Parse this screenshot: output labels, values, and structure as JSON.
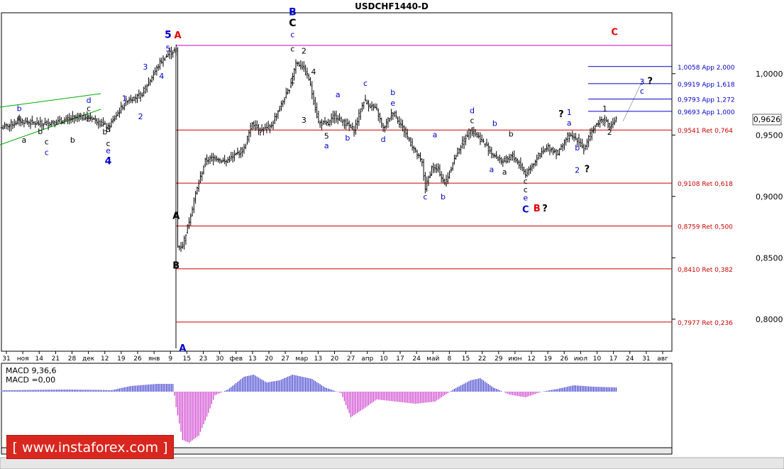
{
  "window": {
    "title": "USDCHF1440-D"
  },
  "price_axis": {
    "current_price": "0,9626",
    "ticks": [
      {
        "label": "1,0000",
        "value": 1.0
      },
      {
        "label": "0,9500",
        "value": 0.95
      },
      {
        "label": "0,9000",
        "value": 0.9
      },
      {
        "label": "0,8500",
        "value": 0.85
      },
      {
        "label": "0,8000",
        "value": 0.8
      }
    ]
  },
  "time_axis": {
    "ticks": [
      "31",
      "ноя",
      "14",
      "21",
      "28",
      "дек",
      "12",
      "19",
      "26",
      "янв",
      "9",
      "15",
      "23",
      "30",
      "фев",
      "13",
      "20",
      "27",
      "мар",
      "13",
      "20",
      "27",
      "апр",
      "10",
      "17",
      "24",
      "май",
      "8",
      "15",
      "22",
      "29",
      "июн",
      "12",
      "19",
      "26",
      "июл",
      "10",
      "17",
      "24",
      "31",
      "авг"
    ]
  },
  "levels": [
    {
      "label": "1,0058 App 2,000",
      "value": 1.0058,
      "color": "#0000cc"
    },
    {
      "label": "0,9919 App 1,618",
      "value": 0.9919,
      "color": "#0000cc"
    },
    {
      "label": "0,9793 App 1,272",
      "value": 0.9793,
      "color": "#0000cc"
    },
    {
      "label": "0,9693 App 1,000",
      "value": 0.9693,
      "color": "#0000cc"
    },
    {
      "label": "0,9541 Ret 0,764",
      "value": 0.9541,
      "color": "#cc0000"
    },
    {
      "label": "0,9108 Ret 0,618",
      "value": 0.9108,
      "color": "#cc0000"
    },
    {
      "label": "0,8759 Ret 0,500",
      "value": 0.8759,
      "color": "#cc0000"
    },
    {
      "label": "0,8410 Ret 0,382",
      "value": 0.841,
      "color": "#cc0000"
    },
    {
      "label": "0,7977 Ret 0,236",
      "value": 0.7977,
      "color": "#cc0000"
    }
  ],
  "wave_labels": [
    {
      "text": "5",
      "i": 103,
      "p": 1.029,
      "color": "#0000cc",
      "bold": true,
      "size": 14
    },
    {
      "text": "A",
      "i": 109,
      "p": 1.0288,
      "color": "#e00000",
      "bold": true,
      "size": 13
    },
    {
      "text": "5",
      "i": 103,
      "p": 1.018,
      "color": "#0000cc",
      "size": 11
    },
    {
      "text": "3",
      "i": 89,
      "p": 1.0035,
      "color": "#0000cc",
      "size": 11
    },
    {
      "text": "4",
      "i": 99,
      "p": 0.9958,
      "color": "#0000cc",
      "size": 11
    },
    {
      "text": "1",
      "i": 76,
      "p": 0.9775,
      "color": "#0000cc",
      "size": 11
    },
    {
      "text": "2",
      "i": 86,
      "p": 0.9628,
      "color": "#0000cc",
      "size": 11
    },
    {
      "text": "d",
      "i": 54,
      "p": 0.9763,
      "color": "#0000cc",
      "size": 11
    },
    {
      "text": "c",
      "i": 54,
      "p": 0.9695,
      "color": "#000",
      "size": 11
    },
    {
      "text": "b",
      "i": 54,
      "p": 0.961,
      "color": "#000",
      "size": 11
    },
    {
      "text": "b",
      "i": 11,
      "p": 0.9695,
      "color": "#0000cc",
      "size": 11
    },
    {
      "text": "e",
      "i": 11,
      "p": 0.962,
      "color": "#000",
      "size": 11
    },
    {
      "text": "a",
      "i": 14,
      "p": 0.9437,
      "color": "#000",
      "size": 11
    },
    {
      "text": "b",
      "i": 24,
      "p": 0.9508,
      "color": "#000",
      "size": 11
    },
    {
      "text": "c",
      "i": 28,
      "p": 0.9425,
      "color": "#000",
      "size": 11
    },
    {
      "text": "c",
      "i": 28,
      "p": 0.9337,
      "color": "#0000cc",
      "size": 11
    },
    {
      "text": "b",
      "i": 44,
      "p": 0.9438,
      "color": "#000",
      "size": 11
    },
    {
      "text": "d",
      "i": 66,
      "p": 0.9526,
      "color": "#000",
      "size": 11
    },
    {
      "text": "b",
      "i": 64,
      "p": 0.9505,
      "color": "#000",
      "size": 11
    },
    {
      "text": "c",
      "i": 66,
      "p": 0.941,
      "color": "#000",
      "size": 11
    },
    {
      "text": "e",
      "i": 66,
      "p": 0.9353,
      "color": "#0000cc",
      "size": 11
    },
    {
      "text": "4",
      "i": 66,
      "p": 0.9263,
      "color": "#0000cc",
      "bold": true,
      "size": 14
    },
    {
      "text": "B",
      "i": 180,
      "p": 1.0475,
      "color": "#0000cc",
      "bold": true,
      "size": 14
    },
    {
      "text": "C",
      "i": 180,
      "p": 1.0385,
      "color": "#000",
      "bold": true,
      "size": 14
    },
    {
      "text": "c",
      "i": 180,
      "p": 1.0297,
      "color": "#0000cc",
      "size": 11
    },
    {
      "text": "c",
      "i": 180,
      "p": 1.0182,
      "color": "#000",
      "size": 11
    },
    {
      "text": "2",
      "i": 187,
      "p": 1.0163,
      "color": "#000",
      "size": 11
    },
    {
      "text": "1",
      "i": 180,
      "p": 0.9922,
      "color": "#000",
      "size": 11
    },
    {
      "text": "4",
      "i": 193,
      "p": 0.9993,
      "color": "#000",
      "size": 11
    },
    {
      "text": "3",
      "i": 187,
      "p": 0.9599,
      "color": "#000",
      "size": 11
    },
    {
      "text": "5",
      "i": 201,
      "p": 0.9469,
      "color": "#000",
      "size": 11
    },
    {
      "text": "a",
      "i": 201,
      "p": 0.9393,
      "color": "#0000cc",
      "size": 11
    },
    {
      "text": "a",
      "i": 208,
      "p": 0.9809,
      "color": "#0000cc",
      "size": 11
    },
    {
      "text": "b",
      "i": 214,
      "p": 0.9456,
      "color": "#0000cc",
      "size": 11
    },
    {
      "text": "c",
      "i": 225,
      "p": 0.9901,
      "color": "#0000cc",
      "size": 11
    },
    {
      "text": "b",
      "i": 242,
      "p": 0.9825,
      "color": "#0000cc",
      "size": 11
    },
    {
      "text": "e",
      "i": 242,
      "p": 0.974,
      "color": "#0000cc",
      "size": 11
    },
    {
      "text": "d",
      "i": 236,
      "p": 0.9445,
      "color": "#0000cc",
      "size": 11
    },
    {
      "text": "a",
      "i": 268,
      "p": 0.9481,
      "color": "#0000cc",
      "size": 11
    },
    {
      "text": "c",
      "i": 262,
      "p": 0.8977,
      "color": "#0000cc",
      "size": 11
    },
    {
      "text": "b",
      "i": 273,
      "p": 0.8977,
      "color": "#0000cc",
      "size": 11
    },
    {
      "text": "d",
      "i": 291,
      "p": 0.9677,
      "color": "#0000cc",
      "size": 11
    },
    {
      "text": "c",
      "i": 291,
      "p": 0.9597,
      "color": "#000",
      "size": 11
    },
    {
      "text": "b",
      "i": 305,
      "p": 0.9575,
      "color": "#0000cc",
      "size": 11
    },
    {
      "text": "a",
      "i": 303,
      "p": 0.9198,
      "color": "#0000cc",
      "size": 11
    },
    {
      "text": "b",
      "i": 315,
      "p": 0.9487,
      "color": "#000",
      "size": 11
    },
    {
      "text": "a",
      "i": 311,
      "p": 0.9177,
      "color": "#000",
      "size": 11
    },
    {
      "text": "c",
      "i": 324,
      "p": 0.9104,
      "color": "#000",
      "size": 11
    },
    {
      "text": "c",
      "i": 324,
      "p": 0.9035,
      "color": "#000",
      "size": 11
    },
    {
      "text": "e",
      "i": 324,
      "p": 0.8966,
      "color": "#0000cc",
      "size": 11
    },
    {
      "text": "C",
      "i": 324,
      "p": 0.8869,
      "color": "#0000cc",
      "bold": true,
      "size": 13
    },
    {
      "text": "B",
      "i": 331,
      "p": 0.8879,
      "color": "#e00000",
      "bold": true,
      "size": 13
    },
    {
      "text": "?",
      "i": 336,
      "p": 0.8879,
      "color": "#000",
      "bold": true,
      "size": 13
    },
    {
      "text": "?",
      "i": 346,
      "p": 0.9647,
      "color": "#000",
      "bold": true,
      "size": 13
    },
    {
      "text": "1",
      "i": 351,
      "p": 0.9664,
      "color": "#0000cc",
      "size": 11
    },
    {
      "text": "a",
      "i": 351,
      "p": 0.9576,
      "color": "#0000cc",
      "size": 11
    },
    {
      "text": "b",
      "i": 356,
      "p": 0.9375,
      "color": "#0000cc",
      "size": 11
    },
    {
      "text": "2",
      "i": 356,
      "p": 0.9194,
      "color": "#0000cc",
      "size": 11
    },
    {
      "text": "?",
      "i": 362,
      "p": 0.9198,
      "color": "#000",
      "bold": true,
      "size": 13
    },
    {
      "text": "1",
      "i": 373,
      "p": 0.9693,
      "color": "#000",
      "size": 11
    },
    {
      "text": "2",
      "i": 376,
      "p": 0.9501,
      "color": "#000",
      "size": 11
    },
    {
      "text": "3",
      "i": 396,
      "p": 0.9911,
      "color": "#0000cc",
      "size": 11
    },
    {
      "text": "?",
      "i": 401,
      "p": 0.9914,
      "color": "#000",
      "bold": true,
      "size": 13
    },
    {
      "text": "c",
      "i": 396,
      "p": 0.9838,
      "color": "#0000cc",
      "size": 11
    },
    {
      "text": "C",
      "i": 379,
      "p": 1.0313,
      "color": "#e00000",
      "bold": true,
      "size": 13
    },
    {
      "text": "A",
      "i": 108,
      "p": 0.8817,
      "color": "#000",
      "bold": true,
      "size": 13
    },
    {
      "text": "B",
      "i": 108,
      "p": 0.8413,
      "color": "#000",
      "bold": true,
      "size": 13
    },
    {
      "text": "A",
      "i": 112,
      "p": 0.7739,
      "color": "#0000cc",
      "bold": true,
      "size": 13
    }
  ],
  "chart_data": [
    {
      "type": "candlestick",
      "title": "USDCHF1440-D",
      "ylim": [
        0.7739,
        1.0496
      ],
      "ytick_labels": [
        "1,0000",
        "0,9500",
        "0,9000",
        "0,8500",
        "0,8000"
      ],
      "last_price": 0.9626,
      "series": [
        {
          "anchor_closes": [
            [
              0,
              0.956
            ],
            [
              12,
              0.9615
            ],
            [
              24,
              0.959
            ],
            [
              36,
              0.961
            ],
            [
              48,
              0.965
            ],
            [
              56,
              0.964
            ],
            [
              66,
              0.956
            ],
            [
              72,
              0.968
            ],
            [
              78,
              0.979
            ],
            [
              86,
              0.982
            ],
            [
              92,
              0.995
            ],
            [
              98,
              1.009
            ],
            [
              104,
              1.017
            ],
            [
              108,
              1.019
            ],
            [
              109,
              0.859
            ],
            [
              112,
              0.86
            ],
            [
              116,
              0.88
            ],
            [
              120,
              0.902
            ],
            [
              126,
              0.929
            ],
            [
              132,
              0.932
            ],
            [
              138,
              0.928
            ],
            [
              144,
              0.933
            ],
            [
              150,
              0.939
            ],
            [
              155,
              0.96
            ],
            [
              160,
              0.954
            ],
            [
              166,
              0.956
            ],
            [
              172,
              0.972
            ],
            [
              178,
              0.988
            ],
            [
              182,
              1.009
            ],
            [
              186,
              1.006
            ],
            [
              190,
              0.996
            ],
            [
              196,
              0.96
            ],
            [
              202,
              0.959
            ],
            [
              206,
              0.966
            ],
            [
              212,
              0.96
            ],
            [
              218,
              0.954
            ],
            [
              224,
              0.978
            ],
            [
              232,
              0.97
            ],
            [
              236,
              0.955
            ],
            [
              242,
              0.969
            ],
            [
              248,
              0.956
            ],
            [
              254,
              0.941
            ],
            [
              260,
              0.927
            ],
            [
              262,
              0.907
            ],
            [
              266,
              0.923
            ],
            [
              270,
              0.922
            ],
            [
              274,
              0.91
            ],
            [
              282,
              0.937
            ],
            [
              290,
              0.955
            ],
            [
              298,
              0.944
            ],
            [
              304,
              0.934
            ],
            [
              310,
              0.928
            ],
            [
              316,
              0.933
            ],
            [
              322,
              0.923
            ],
            [
              324,
              0.918
            ],
            [
              332,
              0.933
            ],
            [
              338,
              0.94
            ],
            [
              344,
              0.935
            ],
            [
              350,
              0.949
            ],
            [
              356,
              0.947
            ],
            [
              360,
              0.938
            ],
            [
              366,
              0.956
            ],
            [
              372,
              0.964
            ],
            [
              376,
              0.956
            ],
            [
              380,
              0.962
            ]
          ]
        }
      ]
    },
    {
      "type": "bar",
      "title": "MACD 9,36,6",
      "legend": [
        "MACD 9,36,6",
        "MACD =0,00"
      ],
      "series": [
        {
          "name": "MACD",
          "anchor_values": [
            [
              0,
              0.2
            ],
            [
              20,
              0.25
            ],
            [
              40,
              0.3
            ],
            [
              60,
              0.25
            ],
            [
              68,
              0.2
            ],
            [
              80,
              0.8
            ],
            [
              96,
              1.1
            ],
            [
              106,
              1.1
            ],
            [
              108,
              -2.2
            ],
            [
              112,
              -6.8
            ],
            [
              116,
              -7.2
            ],
            [
              122,
              -6.2
            ],
            [
              128,
              -3.0
            ],
            [
              132,
              -0.5
            ],
            [
              140,
              0.3
            ],
            [
              150,
              2.1
            ],
            [
              156,
              2.4
            ],
            [
              164,
              1.3
            ],
            [
              172,
              1.6
            ],
            [
              180,
              2.4
            ],
            [
              192,
              1.8
            ],
            [
              200,
              0.6
            ],
            [
              210,
              -0.2
            ],
            [
              216,
              -3.6
            ],
            [
              224,
              -2.4
            ],
            [
              232,
              -1.1
            ],
            [
              244,
              -1.4
            ],
            [
              256,
              -1.7
            ],
            [
              268,
              -1.4
            ],
            [
              280,
              0.4
            ],
            [
              290,
              1.6
            ],
            [
              296,
              1.9
            ],
            [
              304,
              0.6
            ],
            [
              314,
              -0.4
            ],
            [
              324,
              -0.8
            ],
            [
              334,
              0.0
            ],
            [
              344,
              0.4
            ],
            [
              354,
              0.9
            ],
            [
              366,
              0.7
            ],
            [
              380,
              0.6
            ]
          ]
        }
      ]
    }
  ]
}
